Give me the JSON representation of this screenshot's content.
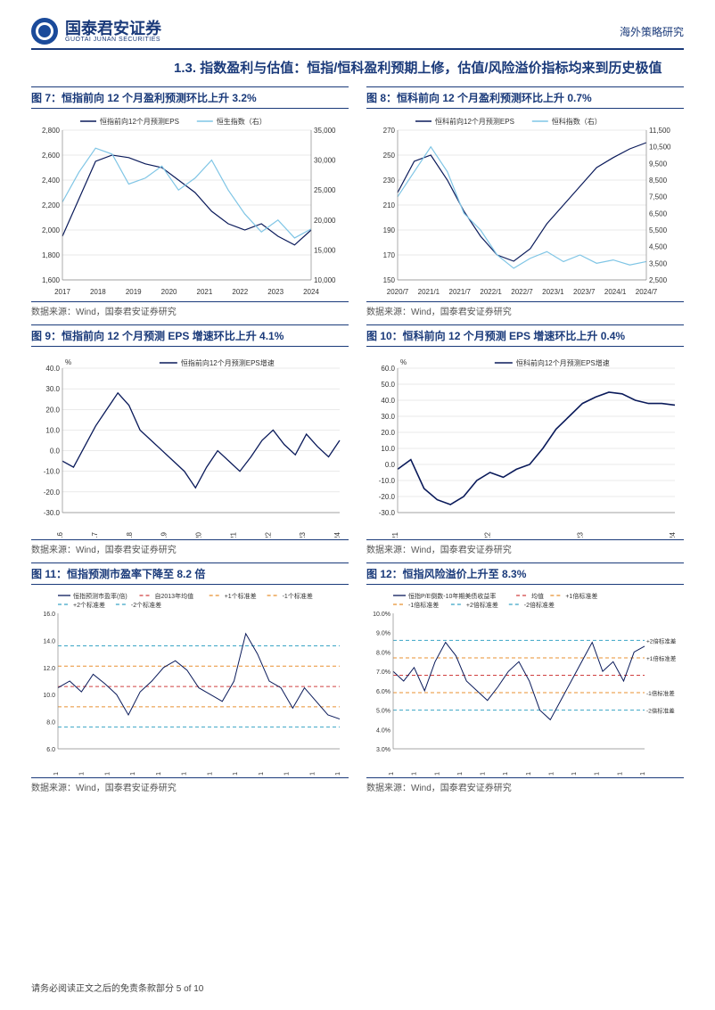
{
  "header": {
    "company_cn": "国泰君安证券",
    "company_en": "GUOTAI JUNAN SECURITIES",
    "doc_type": "海外策略研究"
  },
  "section": {
    "number": "1.3.",
    "title": "指数盈利与估值：恒指/恒科盈利预期上修，估值/风险溢价指标均来到历史极值"
  },
  "source_text": "数据来源：Wind，国泰君安证券研究",
  "footer": "请务必阅读正文之后的免责条款部分 5 of 10",
  "colors": {
    "brand": "#1a3a7a",
    "dark_line": "#0a1a5a",
    "light_line": "#7fc5e5",
    "grid": "#d5d5d5",
    "red_dash": "#d04040",
    "orange_dash": "#e89030",
    "cyan_dash": "#3aa5c5",
    "axis_text": "#333333",
    "bg": "#ffffff"
  },
  "charts": {
    "fig7": {
      "title": "图 7：恒指前向 12 个月盈利预测环比上升 3.2%",
      "type": "line-dual-axis",
      "legend": [
        "恒指前向12个月预测EPS",
        "恒生指数（右）"
      ],
      "legend_colors": [
        "#0a1a5a",
        "#7fc5e5"
      ],
      "x_labels": [
        "2017",
        "2018",
        "2019",
        "2020",
        "2021",
        "2022",
        "2023",
        "2024"
      ],
      "y_left": {
        "min": 1600,
        "max": 2800,
        "step": 200
      },
      "y_right": {
        "min": 10000,
        "max": 35000,
        "step": 5000
      },
      "series_left": [
        1950,
        2250,
        2550,
        2600,
        2580,
        2530,
        2500,
        2400,
        2300,
        2150,
        2050,
        2000,
        2050,
        1950,
        1880,
        2000
      ],
      "series_right": [
        23000,
        28000,
        32000,
        31000,
        26000,
        27000,
        29000,
        25000,
        27000,
        30000,
        25000,
        21000,
        18000,
        20000,
        17000,
        18500
      ],
      "axis_fontsize": 8,
      "legend_fontsize": 8,
      "line_width": 1.2
    },
    "fig8": {
      "title": "图 8：恒科前向 12 个月盈利预测环比上升 0.7%",
      "type": "line-dual-axis",
      "legend": [
        "恒科前向12个月预测EPS",
        "恒科指数（右）"
      ],
      "legend_colors": [
        "#0a1a5a",
        "#7fc5e5"
      ],
      "x_labels": [
        "2020/7",
        "2021/1",
        "2021/7",
        "2022/1",
        "2022/7",
        "2023/1",
        "2023/7",
        "2024/1",
        "2024/7"
      ],
      "y_left": {
        "min": 150,
        "max": 270,
        "step": 20
      },
      "y_right": {
        "min": 2500,
        "max": 11500,
        "step": 1000
      },
      "series_left": [
        220,
        245,
        250,
        230,
        205,
        185,
        170,
        165,
        175,
        195,
        210,
        225,
        240,
        248,
        255,
        260
      ],
      "series_right": [
        7500,
        9000,
        10500,
        9000,
        6500,
        5500,
        4000,
        3200,
        3800,
        4200,
        3600,
        4000,
        3500,
        3700,
        3400,
        3600
      ],
      "axis_fontsize": 8,
      "legend_fontsize": 8,
      "line_width": 1.2
    },
    "fig9": {
      "title": "图 9：恒指前向 12 个月预测 EPS 增速环比上升 4.1%",
      "type": "line",
      "legend": [
        "恒指前向12个月预测EPS增速"
      ],
      "legend_colors": [
        "#0a1a5a"
      ],
      "x_labels": [
        "2016",
        "2017",
        "2018",
        "2019",
        "2020",
        "2021",
        "2022",
        "2023",
        "2024"
      ],
      "y": {
        "min": -30,
        "max": 40,
        "step": 10,
        "unit": "%"
      },
      "series": [
        -5,
        -8,
        2,
        12,
        20,
        28,
        22,
        10,
        5,
        0,
        -5,
        -10,
        -18,
        -8,
        0,
        -5,
        -10,
        -3,
        5,
        10,
        3,
        -2,
        8,
        2,
        -3,
        5
      ],
      "axis_fontsize": 8,
      "legend_fontsize": 8,
      "line_width": 1.3
    },
    "fig10": {
      "title": "图 10：恒科前向 12 个月预测 EPS 增速环比上升 0.4%",
      "type": "line",
      "legend": [
        "恒科前向12个月预测EPS增速"
      ],
      "legend_colors": [
        "#0a1a5a"
      ],
      "x_labels": [
        "2021",
        "2022",
        "2023",
        "2024"
      ],
      "y": {
        "min": -30,
        "max": 60,
        "step": 10,
        "unit": "%"
      },
      "series": [
        -3,
        3,
        -15,
        -22,
        -25,
        -20,
        -10,
        -5,
        -8,
        -3,
        0,
        10,
        22,
        30,
        38,
        42,
        45,
        44,
        40,
        38,
        38,
        37
      ],
      "axis_fontsize": 8,
      "legend_fontsize": 8,
      "line_width": 1.6
    },
    "fig11": {
      "title": "图 11：恒指预测市盈率下降至 8.2 倍",
      "type": "line-bands",
      "legend": [
        "恒指预测市盈率(倍)",
        "自2013年均值",
        "+1个标准差",
        "-1个标准差",
        "+2个标准差",
        "-2个标准差"
      ],
      "legend_colors": [
        "#0a1a5a",
        "#d04040",
        "#e89030",
        "#e89030",
        "#3aa5c5",
        "#3aa5c5"
      ],
      "x_labels": [
        "2013/1",
        "2014/1",
        "2015/1",
        "2016/1",
        "2017/1",
        "2018/1",
        "2019/1",
        "2020/1",
        "2021/1",
        "2022/1",
        "2023/1",
        "2024/1"
      ],
      "y": {
        "min": 6,
        "max": 16,
        "step": 2
      },
      "mean": 10.6,
      "sd1": 12.1,
      "sd1n": 9.1,
      "sd2": 13.6,
      "sd2n": 7.6,
      "series": [
        10.5,
        11,
        10.2,
        11.5,
        10.8,
        10,
        8.5,
        10.2,
        11,
        12,
        12.5,
        11.8,
        10.5,
        10,
        9.5,
        11,
        14.5,
        13,
        11,
        10.5,
        9,
        10.5,
        9.5,
        8.5,
        8.2
      ],
      "axis_fontsize": 7,
      "legend_fontsize": 7,
      "line_width": 1
    },
    "fig12": {
      "title": "图 12：恒指风险溢价上升至 8.3%",
      "type": "line-bands",
      "legend": [
        "恒指P/E倒数-10年期美债收益率",
        "均值",
        "+1倍标准差",
        "-1倍标准差",
        "+2倍标准差",
        "-2倍标准差"
      ],
      "legend_colors": [
        "#0a1a5a",
        "#d04040",
        "#e89030",
        "#e89030",
        "#3aa5c5",
        "#3aa5c5"
      ],
      "x_labels": [
        "2013/1",
        "2014/1",
        "2015/1",
        "2016/1",
        "2017/1",
        "2018/1",
        "2019/1",
        "2020/1",
        "2021/1",
        "2022/1",
        "2023/1",
        "2024/1"
      ],
      "y": {
        "min": 3,
        "max": 10,
        "step": 1,
        "unit": "%"
      },
      "mean": 6.8,
      "sd1": 7.7,
      "sd1n": 5.9,
      "sd2": 8.6,
      "sd2n": 5.0,
      "series": [
        7,
        6.5,
        7.2,
        6,
        7.5,
        8.5,
        7.8,
        6.5,
        6,
        5.5,
        6.2,
        7,
        7.5,
        6.5,
        5,
        4.5,
        5.5,
        6.5,
        7.5,
        8.5,
        7,
        7.5,
        6.5,
        8,
        8.3
      ],
      "right_labels": [
        "+2倍标准差",
        "+1倍标准差",
        "-1倍标准差",
        "-2倍标准差"
      ],
      "axis_fontsize": 7,
      "legend_fontsize": 7,
      "line_width": 1
    }
  }
}
